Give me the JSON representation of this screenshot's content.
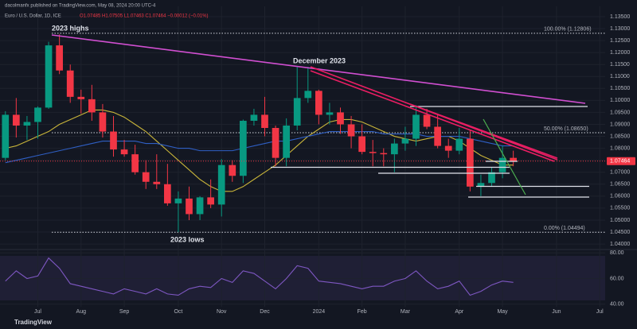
{
  "chart_data": {
    "type": "candlestick",
    "publisher": "dacolmanfx published on TradingView.com, May 08, 2024 20:00 UTC-4",
    "title": "Euro / U.S. Dollar, 1D, ICE",
    "ohlc_summary": "O1.07485 H1.07505 L1.07463 C1.07464 −0.00012 (−0.01%)",
    "categories": [
      null,
      null,
      null,
      "Jul",
      null,
      null,
      null,
      "Aug",
      null,
      null,
      null,
      "Sep",
      null,
      null,
      null,
      null,
      "Oct",
      null,
      null,
      null,
      "Nov",
      null,
      null,
      null,
      "Dec",
      null,
      null,
      null,
      null,
      "2024",
      null,
      null,
      null,
      "Feb",
      null,
      null,
      null,
      "Mar",
      null,
      null,
      null,
      null,
      "Apr",
      null,
      null,
      null,
      "May",
      null,
      null,
      null,
      null,
      "Jun",
      null,
      null,
      null,
      "Jul"
    ],
    "open": [
      1.076,
      1.094,
      1.0895,
      1.091,
      1.097,
      1.123,
      1.1125,
      1.1015,
      1.1005,
      1.095,
      1.087,
      1.0795,
      1.0775,
      1.07,
      1.066,
      1.065,
      1.057,
      1.059,
      1.0525,
      1.0595,
      1.0565,
      1.073,
      1.0685,
      1.0915,
      1.094,
      1.0885,
      1.076,
      1.0895,
      1.101,
      1.104,
      1.094,
      1.095,
      1.09,
      1.085,
      1.0785,
      1.078,
      1.0775,
      1.082,
      1.084,
      1.094,
      1.089,
      1.081,
      1.079,
      1.084,
      1.064,
      1.0655,
      1.07,
      1.076,
      null,
      null,
      null,
      null,
      null,
      null,
      null,
      null
    ],
    "high": [
      1.0955,
      1.101,
      1.0935,
      1.0975,
      1.1245,
      1.1276,
      1.115,
      1.1045,
      1.1065,
      1.0985,
      1.0935,
      1.0835,
      1.0815,
      1.075,
      1.0775,
      1.0735,
      1.062,
      1.064,
      1.06,
      1.067,
      1.0755,
      1.075,
      1.092,
      1.0965,
      1.1015,
      1.0895,
      1.0925,
      1.114,
      1.114,
      1.1045,
      1.099,
      1.097,
      1.0935,
      1.09,
      1.0835,
      1.08,
      1.084,
      1.089,
      1.098,
      1.0965,
      1.0945,
      1.084,
      1.0885,
      1.0875,
      1.069,
      1.072,
      1.081,
      1.079,
      null,
      null,
      null,
      null,
      null,
      null,
      null,
      null
    ],
    "low": [
      1.075,
      1.0845,
      1.0835,
      1.084,
      1.0965,
      1.111,
      1.099,
      1.0945,
      1.0915,
      1.0845,
      1.0765,
      1.0765,
      1.069,
      1.063,
      1.063,
      1.056,
      1.045,
      1.05,
      1.05,
      1.055,
      1.0515,
      1.066,
      1.0655,
      1.0895,
      1.085,
      1.0725,
      1.0725,
      1.0875,
      1.099,
      1.09,
      1.09,
      1.086,
      1.08,
      1.0775,
      1.0725,
      1.0725,
      1.07,
      1.079,
      1.081,
      1.088,
      1.08,
      1.076,
      1.0775,
      1.062,
      1.06,
      1.064,
      1.0675,
      1.0725,
      null,
      null,
      null,
      null,
      null,
      null,
      null,
      null
    ],
    "close": [
      1.094,
      1.0895,
      1.091,
      1.097,
      1.123,
      1.1125,
      1.1015,
      1.1005,
      1.095,
      1.087,
      1.0795,
      1.0775,
      1.07,
      1.066,
      1.065,
      1.057,
      1.059,
      1.0525,
      1.0595,
      1.0565,
      1.073,
      1.0685,
      1.0915,
      1.094,
      1.0885,
      1.076,
      1.0895,
      1.101,
      1.104,
      1.094,
      1.095,
      1.09,
      1.085,
      1.0785,
      1.078,
      1.0775,
      1.082,
      1.084,
      1.094,
      1.089,
      1.081,
      1.079,
      1.084,
      1.064,
      1.0655,
      1.07,
      1.076,
      1.07464,
      null,
      null,
      null,
      null,
      null,
      null,
      null,
      null
    ],
    "up_color": "#089981",
    "down_color": "#f23645",
    "series": [
      {
        "color": "#c9b53a",
        "values": [
          1.08,
          1.081,
          1.083,
          1.085,
          1.087,
          1.09,
          1.092,
          1.094,
          1.096,
          1.096,
          1.095,
          1.093,
          1.09,
          1.087,
          1.083,
          1.079,
          1.075,
          1.071,
          1.067,
          1.064,
          1.062,
          1.062,
          1.064,
          1.067,
          1.07,
          1.073,
          1.077,
          1.081,
          1.085,
          1.088,
          1.091,
          1.092,
          1.092,
          1.091,
          1.089,
          1.087,
          1.085,
          1.084,
          1.083,
          1.084,
          1.085,
          1.085,
          1.083,
          1.08,
          1.077,
          1.075,
          1.073,
          1.073,
          null,
          null,
          null,
          null,
          null,
          null,
          null,
          null
        ]
      },
      {
        "color": "#2f5fc4",
        "values": [
          1.074,
          1.075,
          1.076,
          1.077,
          1.078,
          1.079,
          1.08,
          1.081,
          1.082,
          1.083,
          1.083,
          1.083,
          1.083,
          1.082,
          1.082,
          1.081,
          1.08,
          1.08,
          1.079,
          1.079,
          1.079,
          1.079,
          1.08,
          1.081,
          1.082,
          1.083,
          1.083,
          1.084,
          1.085,
          1.086,
          1.087,
          1.087,
          1.087,
          1.087,
          1.087,
          1.086,
          1.086,
          1.086,
          1.086,
          1.085,
          1.085,
          1.085,
          1.085,
          1.084,
          1.083,
          1.082,
          1.081,
          1.081,
          null,
          null,
          null,
          null,
          null,
          null,
          null,
          null
        ]
      }
    ],
    "ylim": [
      1.0387,
      1.1393
    ],
    "yticks": [
      {
        "value": 1.135,
        "label": "1.13500"
      },
      {
        "value": 1.13,
        "label": "1.13000"
      },
      {
        "value": 1.125,
        "label": "1.12500"
      },
      {
        "value": 1.12,
        "label": "1.12000"
      },
      {
        "value": 1.115,
        "label": "1.11500"
      },
      {
        "value": 1.11,
        "label": "1.11000"
      },
      {
        "value": 1.105,
        "label": "1.10500"
      },
      {
        "value": 1.1,
        "label": "1.10000"
      },
      {
        "value": 1.095,
        "label": "1.09500"
      },
      {
        "value": 1.09,
        "label": "1.09000"
      },
      {
        "value": 1.085,
        "label": "1.08500"
      },
      {
        "value": 1.08,
        "label": "1.08000"
      },
      {
        "value": 1.075,
        "label": "1.07500"
      },
      {
        "value": 1.07,
        "label": "1.07000"
      },
      {
        "value": 1.065,
        "label": "1.06500"
      },
      {
        "value": 1.06,
        "label": "1.06000"
      },
      {
        "value": 1.055,
        "label": "1.05500"
      },
      {
        "value": 1.05,
        "label": "1.05000"
      },
      {
        "value": 1.045,
        "label": "1.04500"
      },
      {
        "value": 1.04,
        "label": "1.04000"
      }
    ],
    "levels": [
      {
        "label": "100.00% (1.12806)",
        "value": 1.12806
      },
      {
        "label": "50.00% (1.08650)",
        "value": 1.0865
      },
      {
        "label": "0.00% (1.04494)",
        "value": 1.04494
      }
    ],
    "last_price": {
      "value": 1.07464,
      "label": "1.07464"
    },
    "annotations": [
      "2023 highs",
      "December 2023",
      "2023 lows"
    ],
    "rsi": {
      "color": "#7e57c2",
      "values": [
        58,
        66,
        60,
        62,
        76,
        68,
        56,
        54,
        52,
        50,
        48,
        52,
        50,
        48,
        52,
        48,
        47,
        52,
        54,
        53,
        60,
        57,
        66,
        64,
        58,
        52,
        60,
        70,
        68,
        58,
        57,
        56,
        54,
        52,
        54,
        54,
        58,
        60,
        66,
        58,
        52,
        54,
        58,
        47,
        50,
        55,
        58,
        57,
        null,
        null,
        null,
        null,
        null,
        null,
        null,
        null
      ],
      "ylim": [
        38,
        82
      ],
      "yticks": [
        {
          "value": 80,
          "label": "80.00"
        },
        {
          "value": 60,
          "label": "60.00"
        },
        {
          "value": 40,
          "label": "40.00"
        }
      ]
    },
    "footer": "TradingView"
  }
}
